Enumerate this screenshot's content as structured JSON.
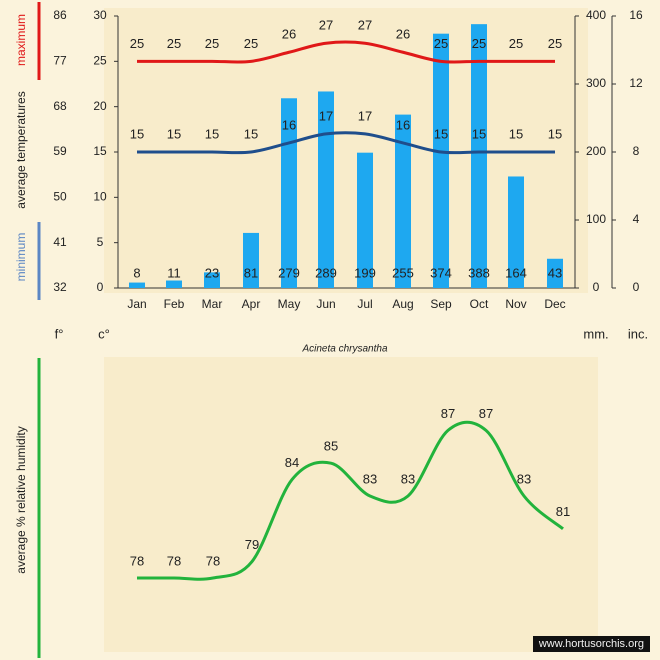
{
  "chart_data": [
    {
      "type": "bar+line",
      "title": "Acineta chrysantha",
      "months": [
        "Jan",
        "Feb",
        "Mar",
        "Apr",
        "May",
        "Jun",
        "Jul",
        "Aug",
        "Sep",
        "Oct",
        "Nov",
        "Dec"
      ],
      "rainfall_mm": [
        8,
        11,
        23,
        81,
        279,
        289,
        199,
        255,
        374,
        388,
        164,
        43
      ],
      "max_temp_c": [
        25,
        25,
        25,
        25,
        26,
        27,
        27,
        26,
        25,
        25,
        25,
        25
      ],
      "min_temp_c": [
        15,
        15,
        15,
        15,
        16,
        17,
        17,
        16,
        15,
        15,
        15,
        15
      ],
      "axis_f_ticks": [
        "86",
        "77",
        "68",
        "59",
        "50",
        "41",
        "32"
      ],
      "axis_c_ticks": [
        "30",
        "25",
        "20",
        "15",
        "10",
        "5",
        "0"
      ],
      "axis_mm_ticks": [
        "400",
        "300",
        "200",
        "100",
        "0"
      ],
      "axis_inch_ticks": [
        "16",
        "12",
        "8",
        "4",
        "0"
      ],
      "c_range": [
        0,
        30
      ],
      "mm_range": [
        0,
        400
      ],
      "unit_f": "f°",
      "unit_c": "c°",
      "unit_mm": "mm.",
      "unit_inch": "inc.",
      "label_maximum": "maximum",
      "label_average_temperatures": "average temperatures",
      "label_minimum": "minimum",
      "colors": {
        "bars": "#1ea8f0",
        "max": "#e01818",
        "min": "#1f4e8c"
      }
    },
    {
      "type": "line",
      "months": [
        "Jan",
        "Feb",
        "Mar",
        "Apr",
        "May",
        "Jun",
        "Jul",
        "Aug",
        "Sep",
        "Oct",
        "Nov",
        "Dec"
      ],
      "humidity_pct": [
        78,
        78,
        78,
        79,
        84,
        85,
        83,
        83,
        87,
        87,
        83,
        81
      ],
      "ylabel": "average % relative humidity",
      "colors": {
        "line": "#22b33c"
      }
    }
  ],
  "watermark": "www.hortusorchis.org"
}
